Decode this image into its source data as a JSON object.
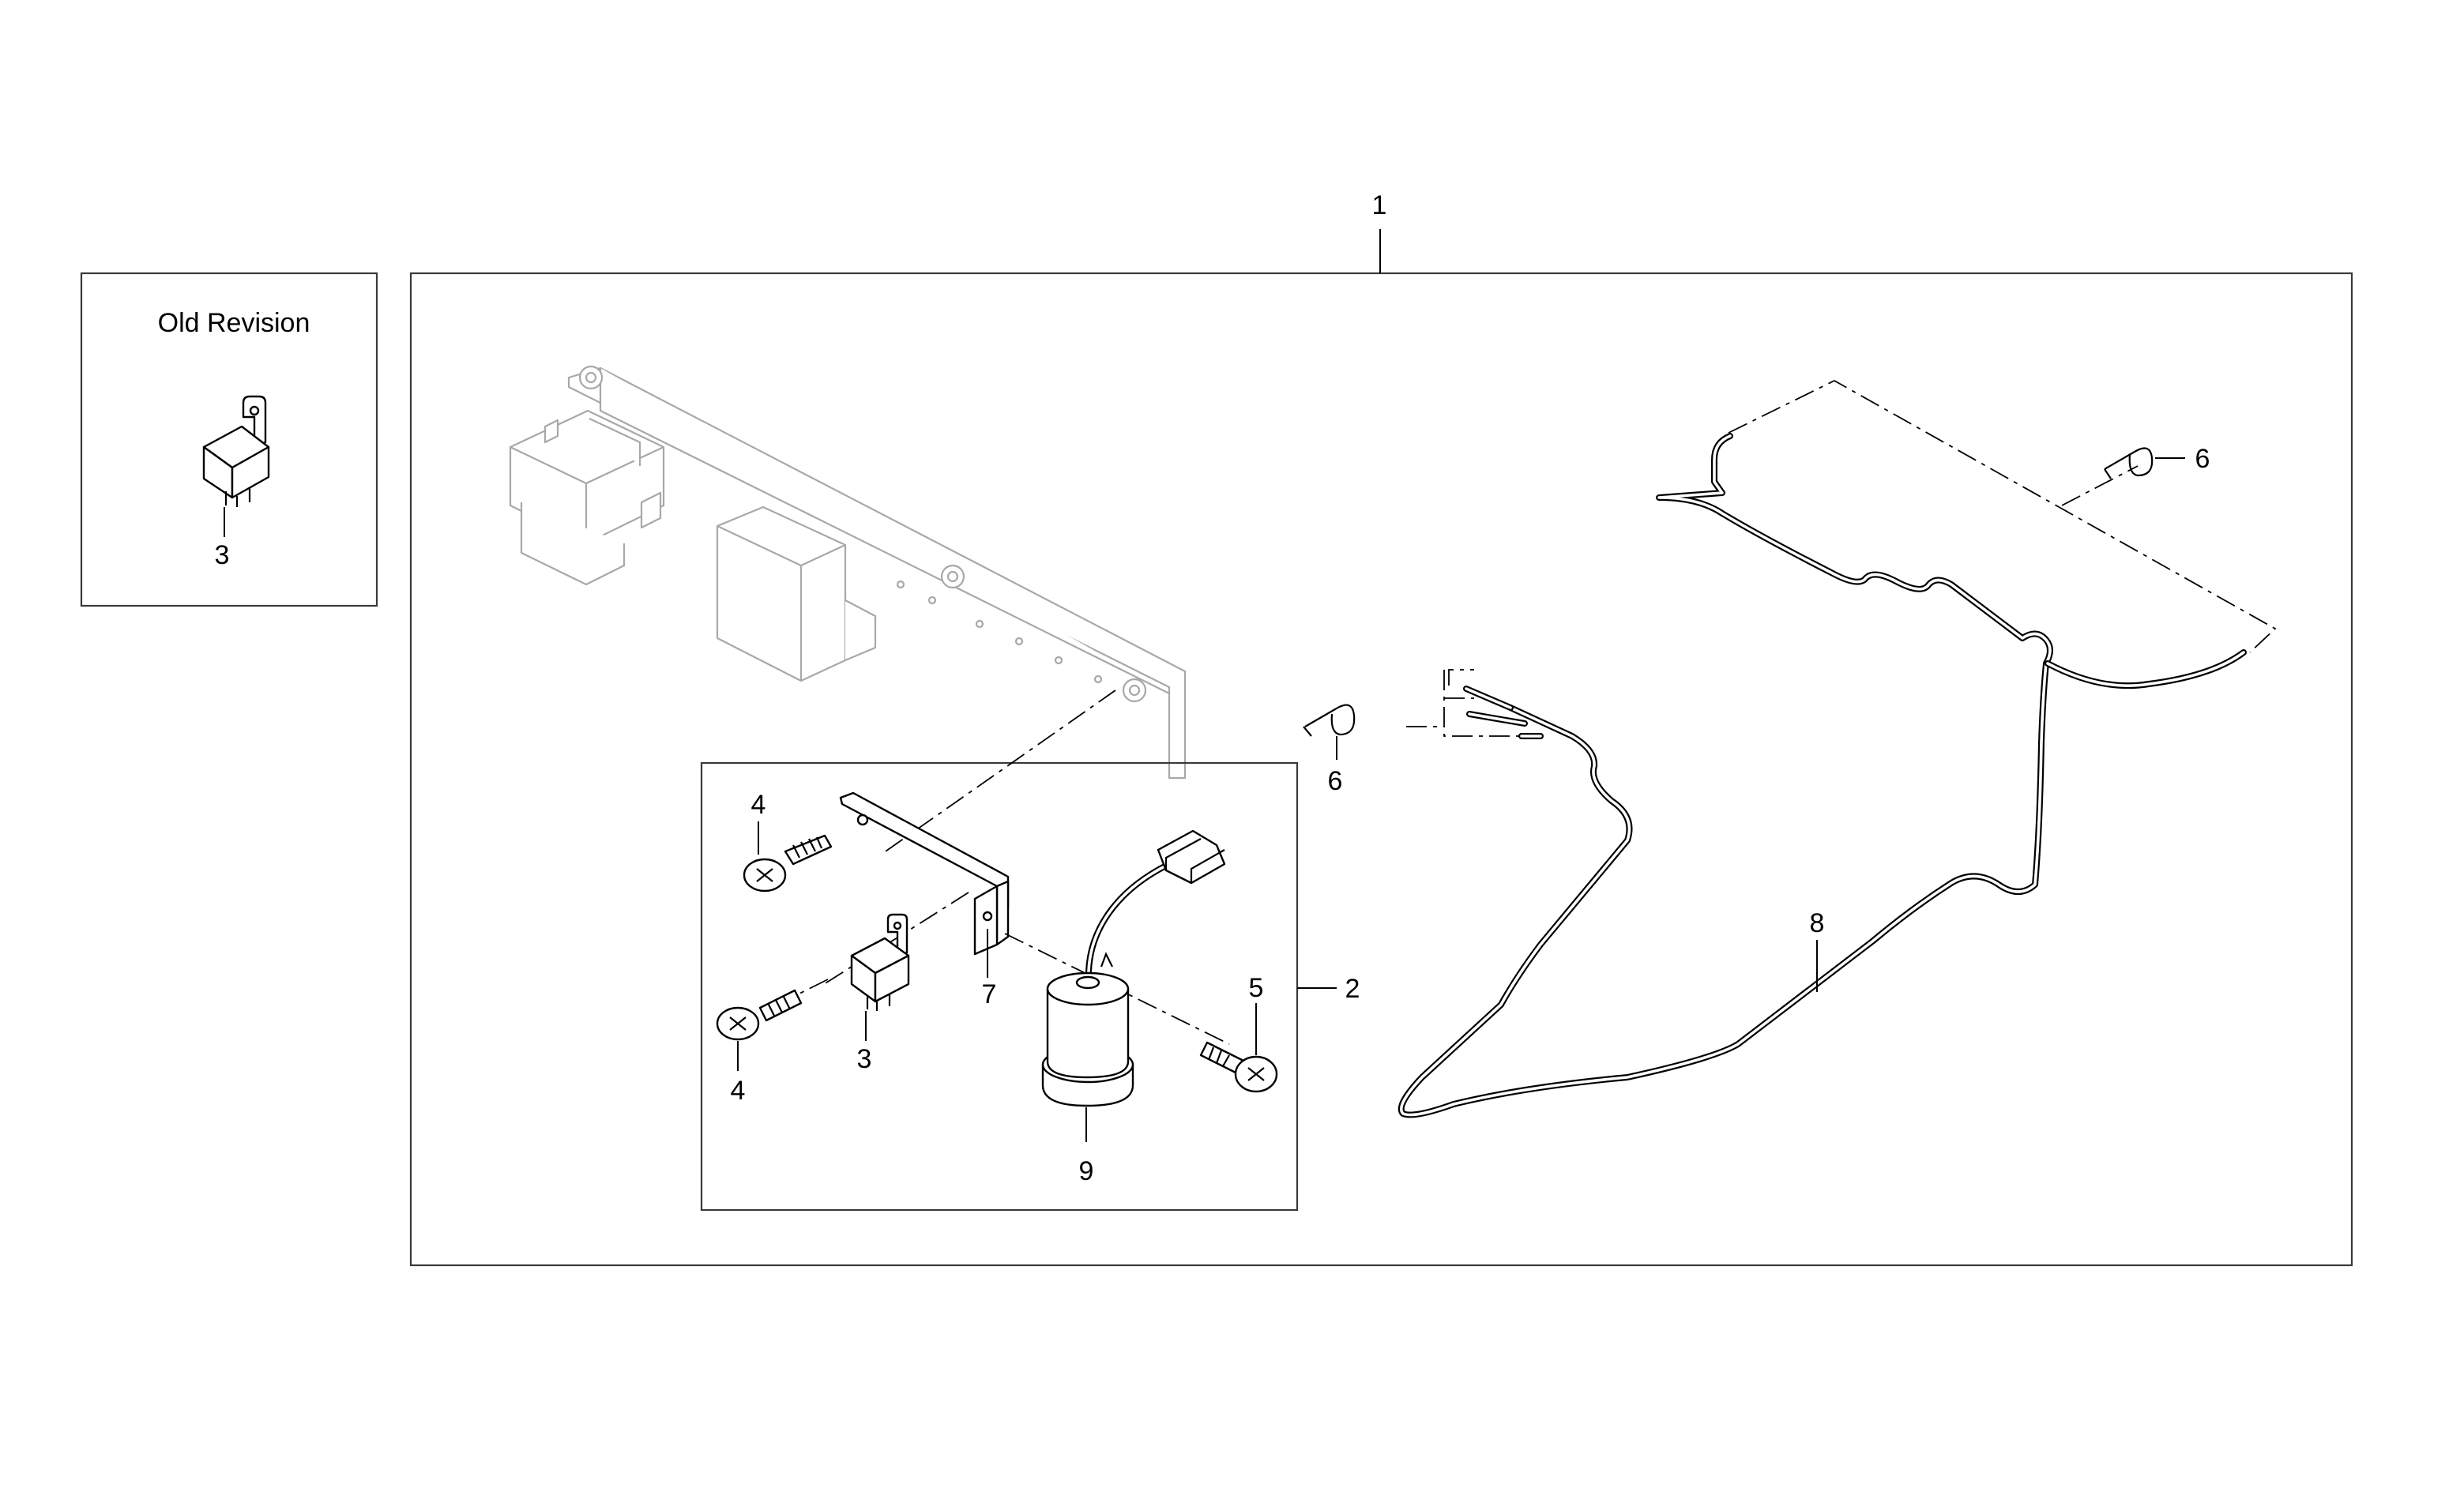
{
  "diagram": {
    "inset_title": "Old Revision",
    "callouts": {
      "assembly": "1",
      "bracket_kit": "2",
      "relay": "3",
      "relay_old": "3",
      "screw_upper": "4",
      "screw_lower": "4",
      "screw_right": "5",
      "clip_upper": "6",
      "clip_lower": "6",
      "bracket": "7",
      "harness": "8",
      "flasher": "9"
    }
  }
}
